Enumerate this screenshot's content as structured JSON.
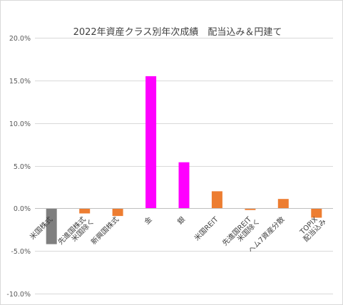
{
  "chart_data": {
    "type": "bar",
    "title": "2022年資産クラス別年次成績　配当込み＆円建て",
    "xlabel": "",
    "ylabel": "",
    "ylim": [
      -0.1,
      0.2
    ],
    "yticks": [
      0.2,
      0.15,
      0.1,
      0.05,
      0.0,
      -0.05,
      -0.1
    ],
    "ytick_labels": [
      "20.0%",
      "15.0%",
      "10.0%",
      "5.0%",
      "0.0%",
      "-5.0%",
      "-10.0%"
    ],
    "grid": true,
    "legend": "none",
    "categories": [
      [
        "米国株式"
      ],
      [
        "先進国株式",
        "米国除く"
      ],
      [
        "新興国株式"
      ],
      [
        "金"
      ],
      [
        "銀"
      ],
      [
        "米国REIT"
      ],
      [
        "先進国REIT",
        "米国除く"
      ],
      [
        "ヘム7資産分散"
      ],
      [
        "TOPIX",
        "配当込み"
      ]
    ],
    "values": [
      -0.042,
      -0.006,
      -0.009,
      0.155,
      0.054,
      0.02,
      -0.002,
      0.011,
      -0.011
    ],
    "colors": [
      "#7f7f7f",
      "#ed7d31",
      "#ed7d31",
      "#ff00ff",
      "#ff00ff",
      "#ed7d31",
      "#ed7d31",
      "#ed7d31",
      "#ed7d31"
    ]
  }
}
